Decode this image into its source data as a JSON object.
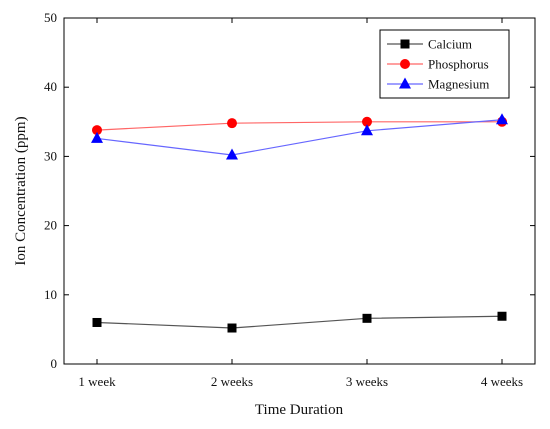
{
  "chart_data": {
    "type": "line",
    "title": "",
    "xlabel": "Time Duration",
    "ylabel": "Ion Concentration (ppm)",
    "categories": [
      "1 week",
      "2 weeks",
      "3 weeks",
      "4 weeks"
    ],
    "ylim": [
      0,
      50
    ],
    "yticks": [
      0,
      10,
      20,
      30,
      40,
      50
    ],
    "grid": false,
    "legend_position": "top-right",
    "series": [
      {
        "name": "Calcium",
        "color": "#000000",
        "line_color": "#555555",
        "marker": "square",
        "values": [
          6.0,
          5.2,
          6.6,
          6.9
        ]
      },
      {
        "name": "Phosphorus",
        "color": "#ff0000",
        "line_color": "#ff6666",
        "marker": "circle",
        "values": [
          33.8,
          34.8,
          35.0,
          35.0
        ]
      },
      {
        "name": "Magnesium",
        "color": "#0000ff",
        "line_color": "#6666ff",
        "marker": "triangle",
        "values": [
          32.6,
          30.2,
          33.7,
          35.3
        ]
      }
    ]
  }
}
